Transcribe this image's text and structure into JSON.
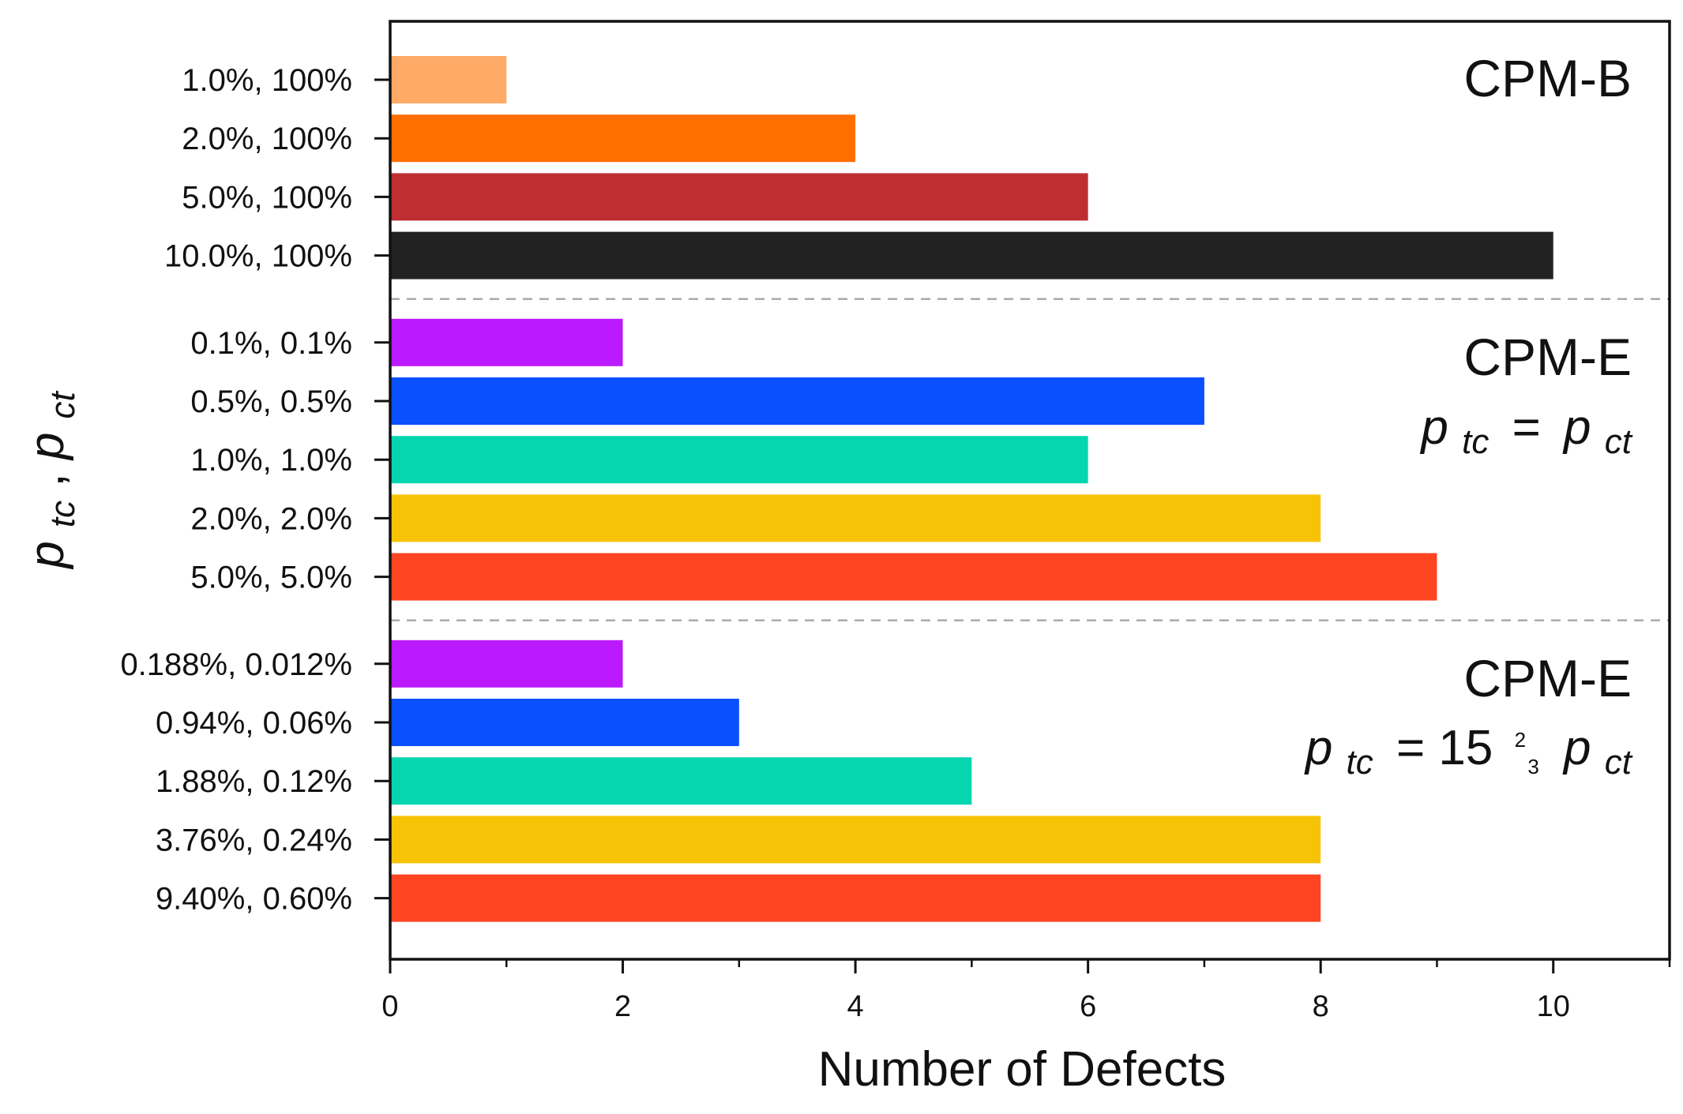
{
  "chart_data": {
    "type": "bar",
    "orientation": "horizontal",
    "xlabel": "Number of Defects",
    "ylabel": {
      "p1": "p",
      "s1": "tc",
      "sep": ", ",
      "p2": "p",
      "s2": "ct"
    },
    "xlim": [
      0,
      11
    ],
    "xticks": [
      0,
      2,
      4,
      6,
      8,
      10
    ],
    "xticks_minor": [
      1,
      3,
      5,
      7,
      9,
      11
    ],
    "grid": false,
    "groups": [
      {
        "label": "CPM-B",
        "items": [
          {
            "label": "1.0%, 100%",
            "value": 1,
            "color": "#FFAA66"
          },
          {
            "label": "2.0%, 100%",
            "value": 4,
            "color": "#FF6F00"
          },
          {
            "label": "5.0%, 100%",
            "value": 6,
            "color": "#BE2E33"
          },
          {
            "label": "10.0%, 100%",
            "value": 10,
            "color": "#222222"
          }
        ]
      },
      {
        "label": "CPM-E",
        "condition": {
          "lhs_p": "p",
          "lhs_sub": "tc",
          "op": "=",
          "rhs_p": "p",
          "rhs_sub": "ct"
        },
        "items": [
          {
            "label": "0.1%, 0.1%",
            "value": 2,
            "color": "#BB1AFF"
          },
          {
            "label": "0.5%, 0.5%",
            "value": 7,
            "color": "#0A50FF"
          },
          {
            "label": "1.0%, 1.0%",
            "value": 6,
            "color": "#06D6B0"
          },
          {
            "label": "2.0%, 2.0%",
            "value": 8,
            "color": "#F7C306"
          },
          {
            "label": "5.0%, 5.0%",
            "value": 9,
            "color": "#FF4422"
          }
        ]
      },
      {
        "label": "CPM-E",
        "condition": {
          "lhs_p": "p",
          "lhs_sub": "tc",
          "op": "= 15",
          "frac_num": "2",
          "frac_den": "3",
          "rhs_p": "p",
          "rhs_sub": "ct"
        },
        "items": [
          {
            "label": "0.188%, 0.012%",
            "value": 2,
            "color": "#BB1AFF"
          },
          {
            "label": "0.94%, 0.06%",
            "value": 3,
            "color": "#0A50FF"
          },
          {
            "label": "1.88%, 0.12%",
            "value": 5,
            "color": "#06D6B0"
          },
          {
            "label": "3.76%, 0.24%",
            "value": 8,
            "color": "#F7C306"
          },
          {
            "label": "9.40%, 0.60%",
            "value": 8,
            "color": "#FF4422"
          }
        ]
      }
    ]
  }
}
